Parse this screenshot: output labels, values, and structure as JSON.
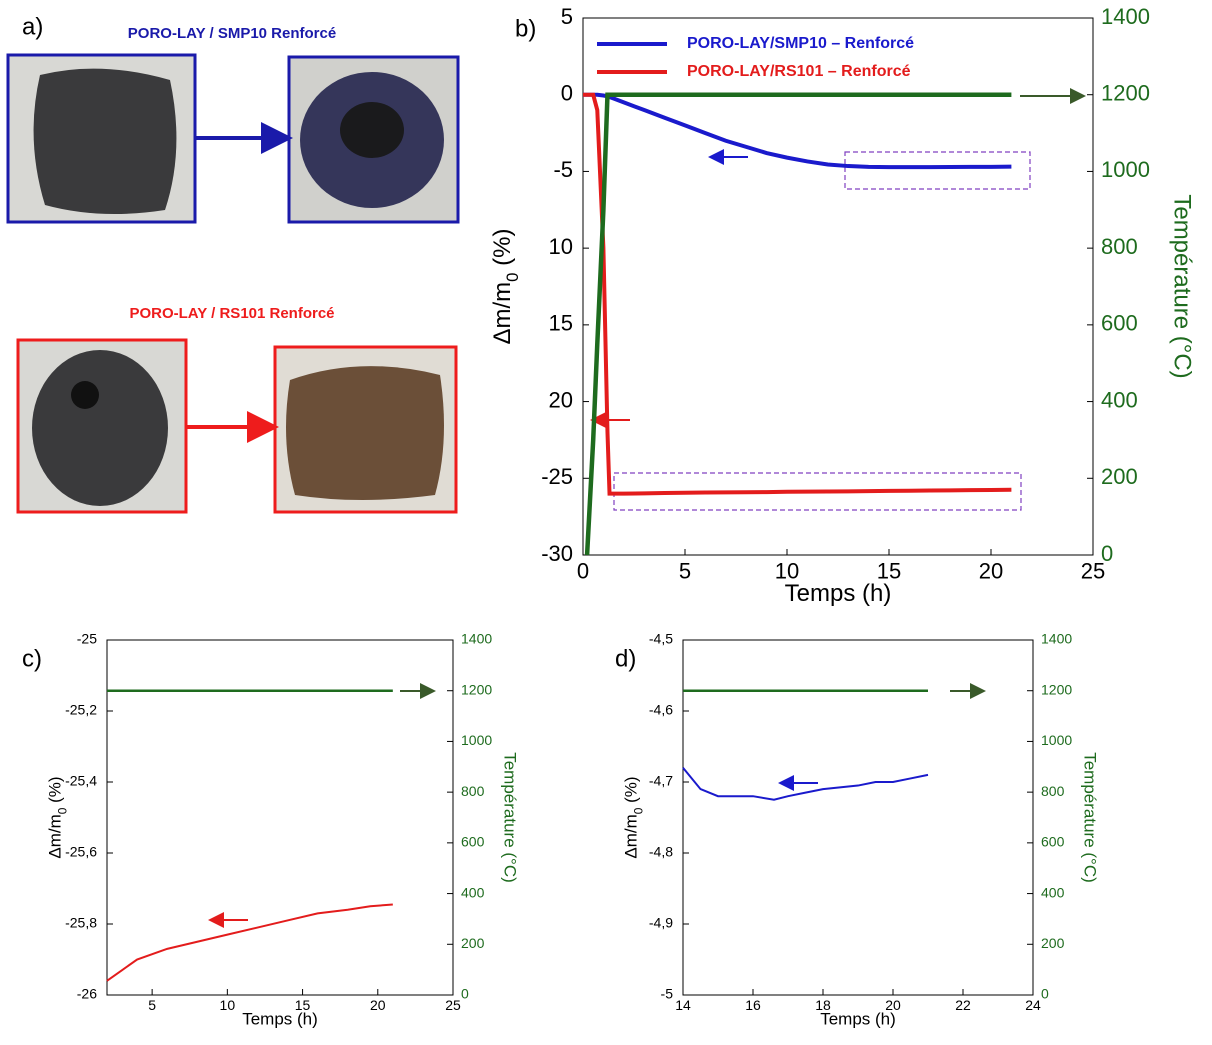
{
  "panel_a": {
    "label": "a)",
    "groups": [
      {
        "title": "PORO-LAY / SMP10 Renforcé",
        "color": "#1a1aaa"
      },
      {
        "title": "PORO-LAY / RS101 Renforcé",
        "color": "#ee1c1c"
      }
    ]
  },
  "chart_data": [
    {
      "type": "line",
      "label": "b)",
      "xlabel": "Temps (h)",
      "ylabel": [
        "Δm/m",
        "0",
        " (%)"
      ],
      "y2label": "Température (°C)",
      "xlim": [
        0,
        25
      ],
      "xticks": [
        0,
        5,
        10,
        15,
        20,
        25
      ],
      "ylim": [
        -30,
        5
      ],
      "yticks": [
        -30,
        -25,
        {
          "value": -20,
          "label": "20"
        },
        {
          "value": -15,
          "label": "15"
        },
        {
          "value": -10,
          "label": "10"
        },
        -5,
        0,
        5
      ],
      "y2lim": [
        0,
        1400
      ],
      "y2ticks": [
        0,
        200,
        400,
        600,
        800,
        1000,
        1200,
        1400
      ],
      "legend": "upper left",
      "x": [
        0,
        0.2,
        0.5,
        0.7,
        1,
        1.2,
        1.3,
        1.5,
        2,
        3,
        4,
        5,
        6,
        7,
        8,
        9,
        10,
        11,
        12,
        13,
        14,
        15,
        16,
        17,
        18,
        19,
        20,
        21
      ],
      "series": [
        {
          "name": "PORO-LAY/SMP10 – Renforcé",
          "color": "#1a1acc",
          "values": [
            0,
            0,
            0,
            0,
            -0.05,
            -0.1,
            -0.15,
            -0.25,
            -0.5,
            -1.0,
            -1.5,
            -2.0,
            -2.5,
            -3.0,
            -3.4,
            -3.8,
            -4.1,
            -4.35,
            -4.55,
            -4.65,
            -4.7,
            -4.72,
            -4.72,
            -4.72,
            -4.71,
            -4.7,
            -4.7,
            -4.69
          ]
        },
        {
          "name": "PORO-LAY/RS101 – Renforcé",
          "color": "#e31c1c",
          "values": [
            0,
            0,
            0,
            -1,
            -10,
            -22,
            -26,
            -26,
            -26,
            -25.98,
            -25.96,
            -25.94,
            -25.93,
            -25.92,
            -25.91,
            -25.9,
            -25.88,
            -25.87,
            -25.86,
            -25.85,
            -25.84,
            -25.82,
            -25.81,
            -25.8,
            -25.79,
            -25.77,
            -25.76,
            -25.75
          ]
        },
        {
          "color": "#1e6b1e",
          "axis": "y2",
          "values": [
            null,
            0,
            300,
            550,
            900,
            1200,
            1200,
            1200,
            1200,
            1200,
            1200,
            1200,
            1200,
            1200,
            1200,
            1200,
            1200,
            1200,
            1200,
            1200,
            1200,
            1200,
            1200,
            1200,
            1200,
            1200,
            1200,
            1200
          ]
        }
      ]
    },
    {
      "type": "line",
      "label": "c)",
      "xlabel": "Temps (h)",
      "ylabel": [
        "Δm/m",
        "0",
        " (%)"
      ],
      "y2label": "Température (°C)",
      "xlim": [
        2,
        25
      ],
      "xticks": [
        5,
        10,
        15,
        20,
        25
      ],
      "ylim": [
        -26,
        -25
      ],
      "yticks": [
        -26,
        {
          "value": -25.8,
          "label": "-25,8"
        },
        {
          "value": -25.6,
          "label": "-25,6"
        },
        {
          "value": -25.4,
          "label": "-25,4"
        },
        {
          "value": -25.2,
          "label": "-25,2"
        },
        -25
      ],
      "y2lim": [
        0,
        1400
      ],
      "y2ticks": [
        0,
        200,
        400,
        600,
        800,
        1000,
        1200,
        1400
      ],
      "x": [
        2,
        3,
        4,
        6,
        8,
        10,
        12,
        14,
        16,
        18,
        19.5,
        21
      ],
      "series": [
        {
          "color": "#e31c1c",
          "values": [
            -25.96,
            -25.93,
            -25.9,
            -25.87,
            -25.85,
            -25.83,
            -25.81,
            -25.79,
            -25.77,
            -25.76,
            -25.75,
            -25.745
          ]
        },
        {
          "color": "#1e6b1e",
          "axis": "y2",
          "values": [
            1200,
            1200,
            1200,
            1200,
            1200,
            1200,
            1200,
            1200,
            1200,
            1200,
            1200,
            1200
          ]
        }
      ]
    },
    {
      "type": "line",
      "label": "d)",
      "xlabel": "Temps (h)",
      "ylabel": [
        "Δm/m",
        "0",
        " (%)"
      ],
      "y2label": "Température (°C)",
      "xlim": [
        14,
        24
      ],
      "xticks": [
        14,
        16,
        18,
        20,
        22,
        24
      ],
      "ylim": [
        -5,
        -4.5
      ],
      "yticks": [
        -5,
        {
          "value": -4.9,
          "label": "-4,9"
        },
        {
          "value": -4.8,
          "label": "-4,8"
        },
        {
          "value": -4.7,
          "label": "-4,7"
        },
        {
          "value": -4.6,
          "label": "-4,6"
        },
        {
          "value": -4.5,
          "label": "-4,5"
        }
      ],
      "y2lim": [
        0,
        1400
      ],
      "y2ticks": [
        0,
        200,
        400,
        600,
        800,
        1000,
        1200,
        1400
      ],
      "x": [
        14,
        14.5,
        15,
        16,
        16.6,
        17,
        17.5,
        18,
        19,
        19.5,
        20,
        20.5,
        21
      ],
      "series": [
        {
          "color": "#1a1acc",
          "values": [
            -4.68,
            -4.71,
            -4.72,
            -4.72,
            -4.725,
            -4.72,
            -4.715,
            -4.71,
            -4.705,
            -4.7,
            -4.7,
            -4.695,
            -4.69
          ]
        },
        {
          "color": "#1e6b1e",
          "axis": "y2",
          "values": [
            1200,
            1200,
            1200,
            1200,
            1200,
            1200,
            1200,
            1200,
            1200,
            1200,
            1200,
            1200,
            1200
          ]
        }
      ]
    }
  ]
}
